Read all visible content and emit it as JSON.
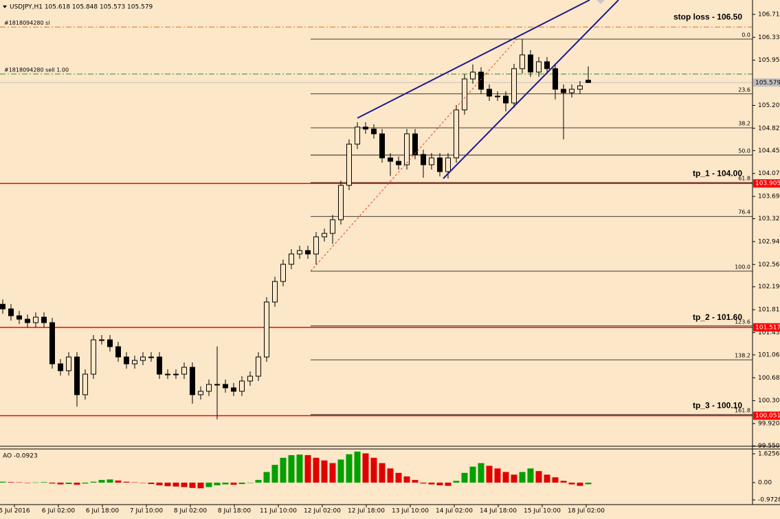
{
  "chart_data": [
    {
      "type": "candlestick",
      "title": "USDJPY,H1  105.618 105.848 105.573 105.579",
      "x_labels": [
        "5 Jul 2016",
        "6 Jul 02:00",
        "6 Jul 18:00",
        "7 Jul 10:00",
        "8 Jul 02:00",
        "8 Jul 18:00",
        "11 Jul 10:00",
        "12 Jul 02:00",
        "12 Jul 18:00",
        "13 Jul 10:00",
        "14 Jul 02:00",
        "14 Jul 18:00",
        "15 Jul 10:00",
        "18 Jul 02:00"
      ],
      "open": [
        101.9,
        101.823,
        101.709,
        101.652,
        101.595,
        101.686,
        101.595,
        100.911,
        100.797,
        101.025,
        100.399,
        100.74,
        101.31,
        101.31,
        101.196,
        101.025,
        100.911,
        100.968,
        101.025,
        101.025,
        100.74,
        100.74,
        100.74,
        100.854,
        100.399,
        100.456,
        100.57,
        100.57,
        100.513,
        100.456,
        100.626,
        100.706,
        101.025,
        101.937,
        102.278,
        102.563,
        102.734,
        102.791,
        102.734,
        103.019,
        103.076,
        103.303,
        103.873,
        104.557,
        104.841,
        104.807,
        104.728,
        104.329,
        104.272,
        104.215,
        104.728,
        104.386,
        104.215,
        104.329,
        104.101,
        104.329,
        105.126,
        105.639,
        105.753,
        105.468,
        105.354,
        105.354,
        105.24,
        105.81,
        106.038,
        105.753,
        105.924,
        105.81,
        105.468,
        105.411,
        105.468,
        105.618
      ],
      "high": [
        101.98,
        101.903,
        101.789,
        101.732,
        101.766,
        101.766,
        101.675,
        100.991,
        101.105,
        101.105,
        100.82,
        101.39,
        101.39,
        101.39,
        101.276,
        101.105,
        101.048,
        101.105,
        101.105,
        101.105,
        100.82,
        100.82,
        100.934,
        100.934,
        100.536,
        100.65,
        101.2,
        100.65,
        100.593,
        100.706,
        100.786,
        101.105,
        102.017,
        102.358,
        102.643,
        102.814,
        102.871,
        102.871,
        103.099,
        103.156,
        103.383,
        103.953,
        104.637,
        104.921,
        104.921,
        104.887,
        104.808,
        104.409,
        104.352,
        104.808,
        104.808,
        104.466,
        104.409,
        104.409,
        104.409,
        105.206,
        105.719,
        105.88,
        105.833,
        105.548,
        105.434,
        105.434,
        105.89,
        106.3,
        106.118,
        106.004,
        106.004,
        105.89,
        105.548,
        105.548,
        105.605,
        105.848
      ],
      "low": [
        101.743,
        101.629,
        101.572,
        101.515,
        101.515,
        101.515,
        100.831,
        100.717,
        100.717,
        100.2,
        100.319,
        100.66,
        101.23,
        101.116,
        100.945,
        100.831,
        100.831,
        100.888,
        100.945,
        100.66,
        100.66,
        100.66,
        100.66,
        100.25,
        100.319,
        100.376,
        99.99,
        100.433,
        100.376,
        100.376,
        100.546,
        100.626,
        100.945,
        101.857,
        102.198,
        102.483,
        102.654,
        102.654,
        102.56,
        102.939,
        102.9,
        103.223,
        103.793,
        104.477,
        104.727,
        104.648,
        104.249,
        104.03,
        104.135,
        104.135,
        104.306,
        104.0,
        104.135,
        104.021,
        103.987,
        104.249,
        105.046,
        105.559,
        105.388,
        105.274,
        105.274,
        105.1,
        105.16,
        105.73,
        105.673,
        105.673,
        105.73,
        105.3,
        104.636,
        105.331,
        105.388,
        105.573
      ],
      "close": [
        101.823,
        101.709,
        101.652,
        101.595,
        101.686,
        101.595,
        100.911,
        100.797,
        101.025,
        100.399,
        100.74,
        101.31,
        101.31,
        101.196,
        101.025,
        100.911,
        100.968,
        101.025,
        101.025,
        100.74,
        100.74,
        100.74,
        100.854,
        100.399,
        100.456,
        100.57,
        100.57,
        100.513,
        100.456,
        100.626,
        100.706,
        101.025,
        101.937,
        102.278,
        102.563,
        102.734,
        102.791,
        102.734,
        103.019,
        103.076,
        103.303,
        103.873,
        104.557,
        104.841,
        104.807,
        104.728,
        104.329,
        104.272,
        104.215,
        104.728,
        104.386,
        104.215,
        104.329,
        104.101,
        104.329,
        105.126,
        105.639,
        105.753,
        105.468,
        105.354,
        105.354,
        105.24,
        105.81,
        106.038,
        105.753,
        105.924,
        105.81,
        105.468,
        105.411,
        105.468,
        105.525,
        105.579
      ],
      "up_color": "#fce7c8",
      "down_color": "#000000",
      "ylim": [
        99.544,
        106.949
      ],
      "yticks": [
        {
          "value": 106.71,
          "label": "106.710"
        },
        {
          "value": 106.33,
          "label": "106.330"
        },
        {
          "value": 105.95,
          "label": "105.950"
        },
        {
          "value": 105.2,
          "label": "105.200"
        },
        {
          "value": 104.82,
          "label": "104.820"
        },
        {
          "value": 104.45,
          "label": "104.450"
        },
        {
          "value": 104.07,
          "label": "104.070"
        },
        {
          "value": 103.69,
          "label": "103.690"
        },
        {
          "value": 103.32,
          "label": "103.320"
        },
        {
          "value": 102.94,
          "label": "102.940"
        },
        {
          "value": 102.56,
          "label": "102.560"
        },
        {
          "value": 102.19,
          "label": "102.190"
        },
        {
          "value": 101.81,
          "label": "101.810"
        },
        {
          "value": 101.43,
          "label": "101.430"
        },
        {
          "value": 101.06,
          "label": "101.060"
        },
        {
          "value": 100.68,
          "label": "100.680"
        },
        {
          "value": 100.3,
          "label": "100.300"
        },
        {
          "value": 99.92,
          "label": "99.920"
        },
        {
          "value": 99.55,
          "label": "99.550"
        }
      ],
      "price_lines": [
        {
          "price": 106.5,
          "name": "#1818094280 sl",
          "label": "stop loss - 106.50",
          "color": "#e07020",
          "dash": "dashdot"
        },
        {
          "price": 105.72,
          "name": "#1818094280 sell 1.00",
          "color": "#2e8b2e",
          "dash": "dashdot"
        },
        {
          "price": 105.579,
          "color": "#c0c0c0",
          "box_color": "#c0c0c0"
        },
        {
          "price": 103.905,
          "label": "tp_1 - 104.00",
          "color": "#ff0000",
          "box_color": "#ff0000"
        },
        {
          "price": 101.517,
          "label": "tp_2 - 101.60",
          "color": "#ff0000",
          "box_color": "#ff0000"
        },
        {
          "price": 100.051,
          "label": "tp_3 - 100.10",
          "color": "#ff0000",
          "box_color": "#ff0000"
        }
      ],
      "fib_levels": [
        {
          "label": "0.0",
          "price": 106.3
        },
        {
          "label": "23.6",
          "price": 105.391
        },
        {
          "label": "38.2",
          "price": 104.829
        },
        {
          "label": "50.0",
          "price": 104.375
        },
        {
          "label": "61.8",
          "price": 103.92
        },
        {
          "label": "76.4",
          "price": 103.358
        },
        {
          "label": "100.0",
          "price": 102.449
        },
        {
          "label": "123.6",
          "price": 101.54
        },
        {
          "label": "138.2",
          "price": 100.978
        },
        {
          "label": "161.8",
          "price": 100.069
        }
      ]
    },
    {
      "type": "bar",
      "title": "AO -0.0923",
      "values": [
        0.05,
        0.03,
        0.02,
        -0.02,
        0.01,
        0.03,
        -0.05,
        -0.1,
        -0.08,
        -0.12,
        -0.05,
        0.05,
        0.15,
        0.18,
        0.12,
        0.05,
        0.02,
        -0.02,
        -0.08,
        -0.15,
        -0.2,
        -0.22,
        -0.25,
        -0.3,
        -0.32,
        -0.25,
        -0.15,
        -0.1,
        -0.12,
        -0.08,
        0,
        0.15,
        0.6,
        1,
        1.4,
        1.55,
        1.58,
        1.55,
        1.4,
        1.25,
        1.1,
        1.3,
        1.6,
        1.75,
        1.65,
        1.4,
        1.1,
        0.8,
        0.55,
        0.35,
        0.15,
        -0.05,
        -0.1,
        -0.15,
        -0.18,
        0.1,
        0.55,
        0.9,
        1.1,
        0.95,
        0.8,
        0.6,
        0.45,
        0.6,
        0.8,
        0.65,
        0.45,
        0.3,
        0.1,
        -0.1,
        -0.18,
        -0.0923
      ],
      "up_color": "#00a000",
      "down_color": "#e00000",
      "ylim": [
        -1.238,
        1.858
      ],
      "yticks": [
        1.6256,
        {
          "value": 0,
          "label": "0.00"
        },
        -0.9728
      ]
    }
  ]
}
